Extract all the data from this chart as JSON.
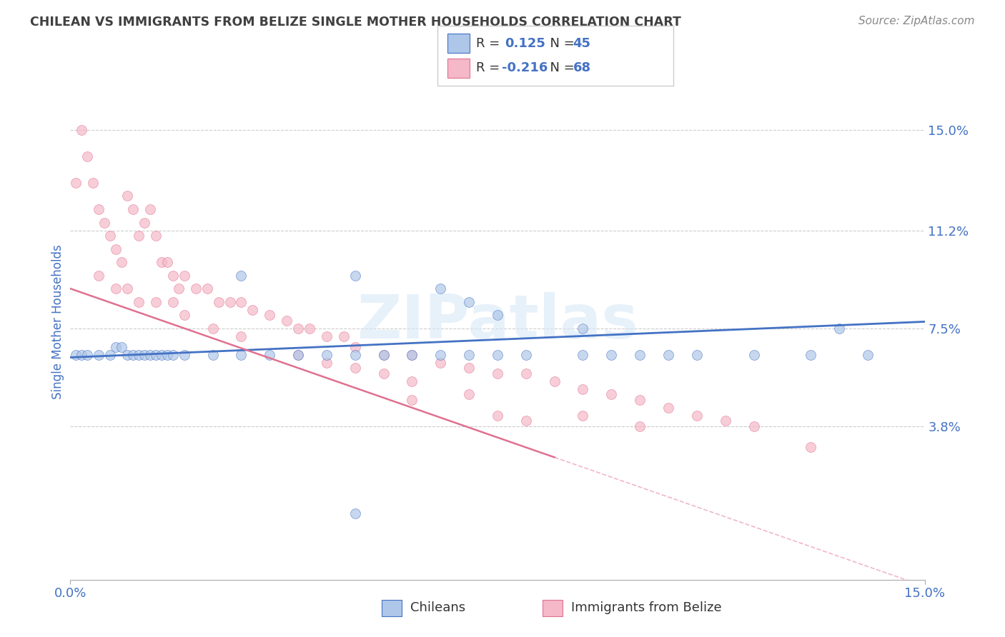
{
  "title": "CHILEAN VS IMMIGRANTS FROM BELIZE SINGLE MOTHER HOUSEHOLDS CORRELATION CHART",
  "source": "Source: ZipAtlas.com",
  "ylabel": "Single Mother Households",
  "xlim": [
    0.0,
    0.15
  ],
  "ylim": [
    -0.02,
    0.175
  ],
  "yticks": [
    0.038,
    0.075,
    0.112,
    0.15
  ],
  "ytick_labels": [
    "3.8%",
    "7.5%",
    "11.2%",
    "15.0%"
  ],
  "xticks": [
    0.0,
    0.15
  ],
  "xtick_labels": [
    "0.0%",
    "15.0%"
  ],
  "r_chilean": 0.125,
  "n_chilean": 45,
  "r_belize": -0.216,
  "n_belize": 68,
  "color_chilean_fill": "#aec6e8",
  "color_chilean_edge": "#4472c4",
  "color_belize_fill": "#f4b8c8",
  "color_belize_edge": "#e07090",
  "color_line_chilean": "#4472c4",
  "color_line_belize": "#e07090",
  "legend_label_chilean": "Chileans",
  "legend_label_belize": "Immigrants from Belize",
  "background_color": "#ffffff",
  "grid_color": "#cccccc",
  "title_color": "#404040",
  "tick_label_color": "#4472c4",
  "number_color": "#4472c4",
  "chilean_x": [
    0.001,
    0.002,
    0.003,
    0.005,
    0.007,
    0.008,
    0.009,
    0.01,
    0.011,
    0.012,
    0.013,
    0.014,
    0.015,
    0.016,
    0.017,
    0.018,
    0.02,
    0.025,
    0.03,
    0.035,
    0.04,
    0.045,
    0.05,
    0.055,
    0.06,
    0.065,
    0.07,
    0.075,
    0.08,
    0.09,
    0.095,
    0.1,
    0.105,
    0.11,
    0.12,
    0.13,
    0.14,
    0.03,
    0.05,
    0.065,
    0.07,
    0.075,
    0.09,
    0.135,
    0.05
  ],
  "chilean_y": [
    0.065,
    0.065,
    0.065,
    0.065,
    0.065,
    0.068,
    0.068,
    0.065,
    0.065,
    0.065,
    0.065,
    0.065,
    0.065,
    0.065,
    0.065,
    0.065,
    0.065,
    0.065,
    0.065,
    0.065,
    0.065,
    0.065,
    0.065,
    0.065,
    0.065,
    0.065,
    0.065,
    0.065,
    0.065,
    0.065,
    0.065,
    0.065,
    0.065,
    0.065,
    0.065,
    0.065,
    0.065,
    0.095,
    0.095,
    0.09,
    0.085,
    0.08,
    0.075,
    0.075,
    0.005
  ],
  "belize_x": [
    0.001,
    0.002,
    0.003,
    0.004,
    0.005,
    0.006,
    0.007,
    0.008,
    0.009,
    0.01,
    0.011,
    0.012,
    0.013,
    0.014,
    0.015,
    0.016,
    0.017,
    0.018,
    0.019,
    0.02,
    0.022,
    0.024,
    0.026,
    0.028,
    0.03,
    0.032,
    0.035,
    0.038,
    0.04,
    0.042,
    0.045,
    0.048,
    0.05,
    0.055,
    0.06,
    0.065,
    0.07,
    0.075,
    0.08,
    0.085,
    0.09,
    0.095,
    0.1,
    0.105,
    0.11,
    0.115,
    0.12,
    0.13,
    0.005,
    0.008,
    0.01,
    0.012,
    0.015,
    0.018,
    0.02,
    0.025,
    0.03,
    0.04,
    0.045,
    0.05,
    0.055,
    0.06,
    0.075,
    0.08,
    0.06,
    0.07,
    0.09,
    0.1
  ],
  "belize_y": [
    0.13,
    0.15,
    0.14,
    0.13,
    0.12,
    0.115,
    0.11,
    0.105,
    0.1,
    0.125,
    0.12,
    0.11,
    0.115,
    0.12,
    0.11,
    0.1,
    0.1,
    0.095,
    0.09,
    0.095,
    0.09,
    0.09,
    0.085,
    0.085,
    0.085,
    0.082,
    0.08,
    0.078,
    0.075,
    0.075,
    0.072,
    0.072,
    0.068,
    0.065,
    0.065,
    0.062,
    0.06,
    0.058,
    0.058,
    0.055,
    0.052,
    0.05,
    0.048,
    0.045,
    0.042,
    0.04,
    0.038,
    0.03,
    0.095,
    0.09,
    0.09,
    0.085,
    0.085,
    0.085,
    0.08,
    0.075,
    0.072,
    0.065,
    0.062,
    0.06,
    0.058,
    0.055,
    0.042,
    0.04,
    0.048,
    0.05,
    0.042,
    0.038
  ]
}
